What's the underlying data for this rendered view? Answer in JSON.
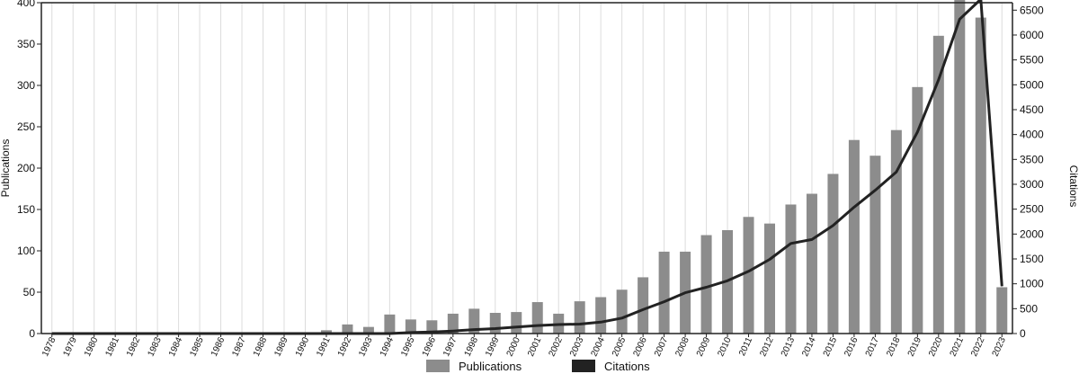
{
  "chart_data": {
    "type": "bar",
    "categories": [
      "1978",
      "1979",
      "1980",
      "1981",
      "1982",
      "1983",
      "1984",
      "1985",
      "1986",
      "1987",
      "1988",
      "1989",
      "1990",
      "1991",
      "1992",
      "1993",
      "1994",
      "1995",
      "1996",
      "1997",
      "1998",
      "1999",
      "2000",
      "2001",
      "2002",
      "2003",
      "2004",
      "2005",
      "2006",
      "2007",
      "2008",
      "2009",
      "2010",
      "2011",
      "2012",
      "2013",
      "2014",
      "2015",
      "2016",
      "2017",
      "2018",
      "2019",
      "2020",
      "2021",
      "2022",
      "2023"
    ],
    "series": [
      {
        "name": "Publications",
        "type": "bar",
        "axis": "left",
        "color": "#8c8c8c",
        "values": [
          0,
          0,
          0,
          0,
          0,
          0,
          0,
          0,
          0,
          0,
          0,
          0,
          0,
          4,
          11,
          8,
          23,
          17,
          16,
          24,
          30,
          25,
          26,
          38,
          24,
          39,
          44,
          53,
          68,
          99,
          99,
          119,
          125,
          141,
          133,
          156,
          169,
          193,
          234,
          215,
          246,
          298,
          360,
          408,
          382,
          56
        ]
      },
      {
        "name": "Citations",
        "type": "line",
        "axis": "right",
        "color": "#222222",
        "values": [
          0,
          0,
          0,
          0,
          0,
          0,
          0,
          0,
          0,
          0,
          0,
          0,
          0,
          0,
          0,
          0,
          0,
          20,
          30,
          50,
          80,
          100,
          130,
          160,
          180,
          190,
          230,
          310,
          480,
          640,
          820,
          930,
          1060,
          1250,
          1490,
          1810,
          1890,
          2170,
          2540,
          2880,
          3250,
          4050,
          5100,
          6320,
          6720,
          950
        ]
      }
    ],
    "ylabel": "Publications",
    "y2label": "Citations",
    "ylim": [
      0,
      400
    ],
    "y2lim": [
      0,
      6650
    ],
    "yticks": [
      0,
      50,
      100,
      150,
      200,
      250,
      300,
      350,
      400
    ],
    "y2ticks": [
      0,
      500,
      1000,
      1500,
      2000,
      2500,
      3000,
      3500,
      4000,
      4500,
      5000,
      5500,
      6000,
      6500
    ],
    "grid": "vertical",
    "legend_position": "bottom"
  },
  "legend": {
    "publications_label": "Publications",
    "citations_label": "Citations",
    "publications_color": "#8c8c8c",
    "citations_color": "#222222"
  }
}
